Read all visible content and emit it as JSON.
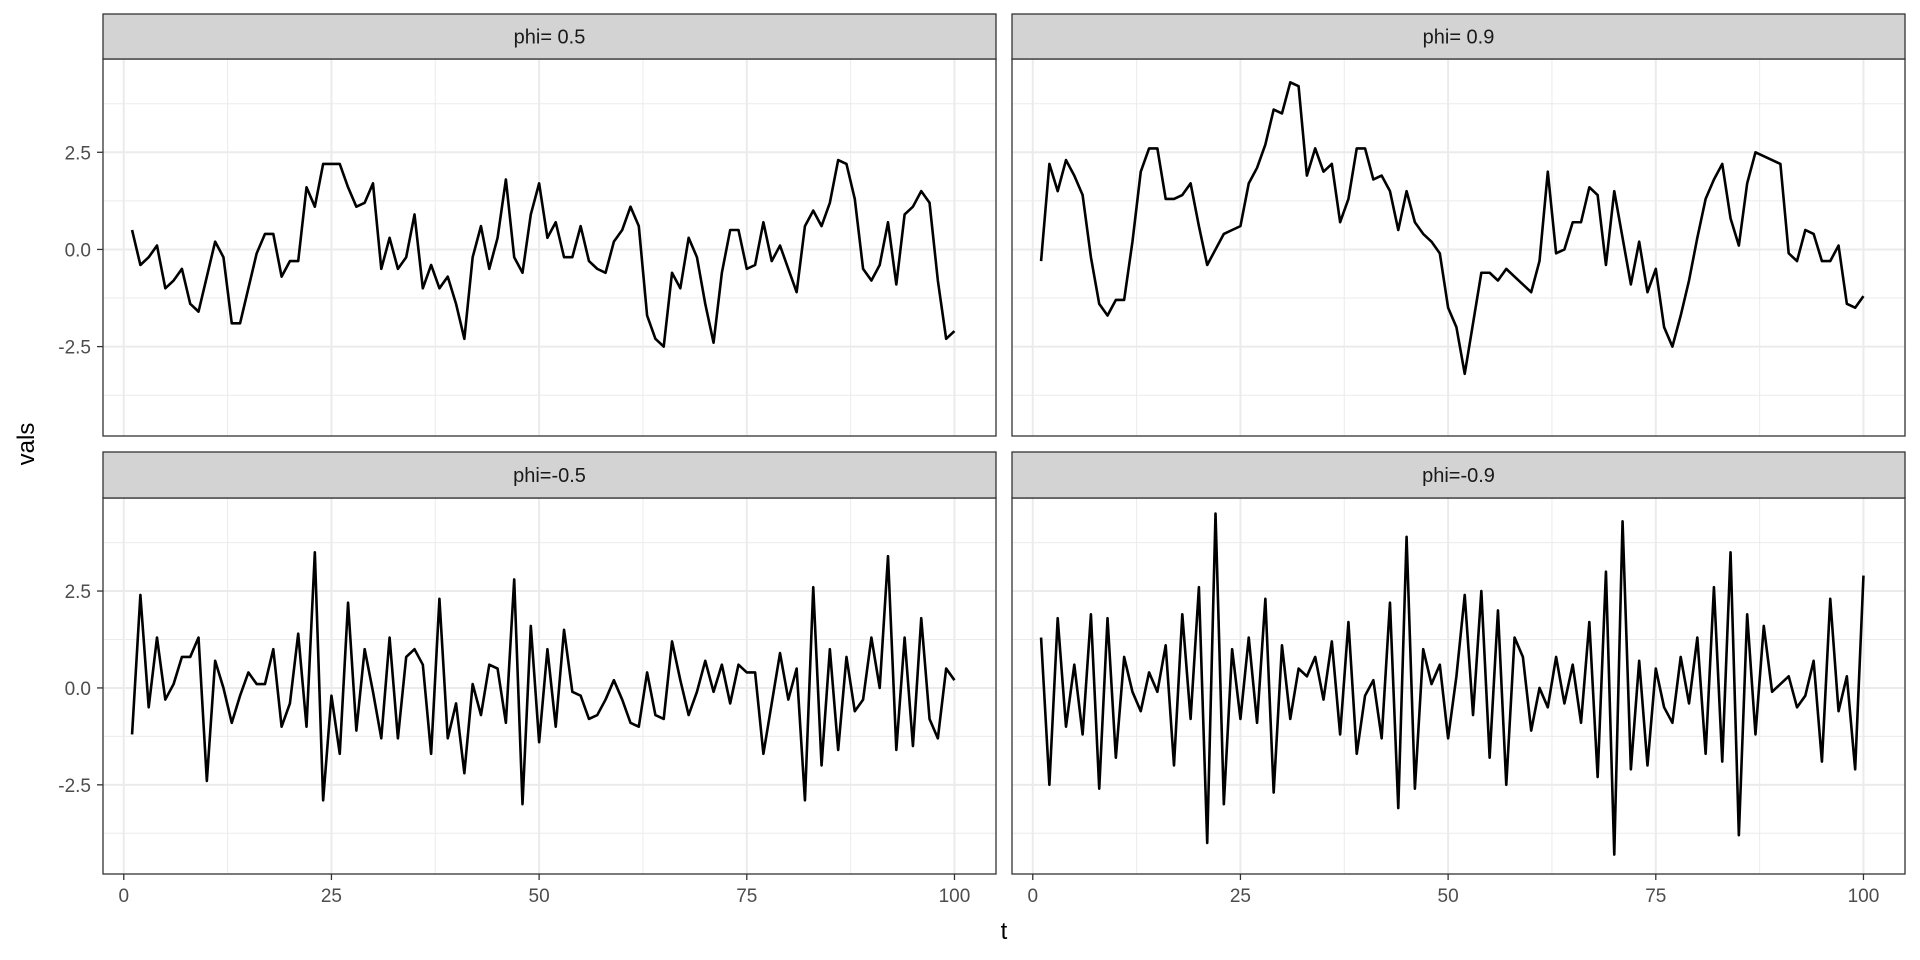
{
  "chart_data": {
    "type": "line",
    "facet_layout": "2x2",
    "xlabel": "t",
    "ylabel": "vals",
    "xlim": [
      -2.5,
      105
    ],
    "ylim": [
      -4.8,
      4.9
    ],
    "x_ticks": [
      0,
      25,
      50,
      75,
      100
    ],
    "x_tick_labels": [
      "0",
      "25",
      "50",
      "75",
      "100"
    ],
    "y_ticks": [
      -2.5,
      0,
      2.5
    ],
    "y_tick_labels": [
      "-2.5",
      "0.0",
      "2.5"
    ],
    "grid": true,
    "legend": "none",
    "line_color": "#000000",
    "strip_color": "#d3d3d3",
    "panels": [
      {
        "label": "phi= 0.5",
        "x_start": 1,
        "values": [
          0.5,
          -0.4,
          -0.2,
          0.1,
          -1.0,
          -0.8,
          -0.5,
          -1.4,
          -1.6,
          -0.7,
          0.2,
          -0.2,
          -1.9,
          -1.9,
          -1.0,
          -0.1,
          0.4,
          0.4,
          -0.7,
          -0.3,
          -0.3,
          1.6,
          1.1,
          2.2,
          2.2,
          2.2,
          1.6,
          1.1,
          1.2,
          1.7,
          -0.5,
          0.3,
          -0.5,
          -0.2,
          0.9,
          -1.0,
          -0.4,
          -1.0,
          -0.7,
          -1.4,
          -2.3,
          -0.2,
          0.6,
          -0.5,
          0.3,
          1.8,
          -0.2,
          -0.6,
          0.9,
          1.7,
          0.3,
          0.7,
          -0.2,
          -0.2,
          0.6,
          -0.3,
          -0.5,
          -0.6,
          0.2,
          0.5,
          1.1,
          0.6,
          -1.7,
          -2.3,
          -2.5,
          -0.6,
          -1.0,
          0.3,
          -0.2,
          -1.4,
          -2.4,
          -0.6,
          0.5,
          0.5,
          -0.5,
          -0.4,
          0.7,
          -0.3,
          0.1,
          -0.5,
          -1.1,
          0.6,
          1.0,
          0.6,
          1.2,
          2.3,
          2.2,
          1.3,
          -0.5,
          -0.8,
          -0.4,
          0.7,
          -0.9,
          0.9,
          1.1,
          1.5,
          1.2,
          -0.8,
          -2.3,
          -2.1
        ]
      },
      {
        "label": "phi= 0.9",
        "x_start": 1,
        "values": [
          -0.3,
          2.2,
          1.5,
          2.3,
          1.9,
          1.4,
          -0.2,
          -1.4,
          -1.7,
          -1.3,
          -1.3,
          0.2,
          2.0,
          2.6,
          2.6,
          1.3,
          1.3,
          1.4,
          1.7,
          0.6,
          -0.4,
          0.0,
          0.4,
          0.5,
          0.6,
          1.7,
          2.1,
          2.7,
          3.6,
          3.5,
          4.3,
          4.2,
          1.9,
          2.6,
          2.0,
          2.2,
          0.7,
          1.3,
          2.6,
          2.6,
          1.8,
          1.9,
          1.5,
          0.5,
          1.5,
          0.7,
          0.4,
          0.2,
          -0.1,
          -1.5,
          -2.0,
          -3.2,
          -1.9,
          -0.6,
          -0.6,
          -0.8,
          -0.5,
          -0.7,
          -0.9,
          -1.1,
          -0.3,
          2.0,
          -0.1,
          0.0,
          0.7,
          0.7,
          1.6,
          1.4,
          -0.4,
          1.5,
          0.3,
          -0.9,
          0.2,
          -1.1,
          -0.5,
          -2.0,
          -2.5,
          -1.7,
          -0.8,
          0.3,
          1.3,
          1.8,
          2.2,
          0.8,
          0.1,
          1.7,
          2.5,
          2.4,
          2.3,
          2.2,
          -0.1,
          -0.3,
          0.5,
          0.4,
          -0.3,
          -0.3,
          0.1,
          -1.4,
          -1.5,
          -1.2
        ]
      },
      {
        "label": "phi=-0.5",
        "x_start": 1,
        "values": [
          -1.2,
          2.4,
          -0.5,
          1.3,
          -0.3,
          0.1,
          0.8,
          0.8,
          1.3,
          -2.4,
          0.7,
          0.0,
          -0.9,
          -0.2,
          0.4,
          0.1,
          0.1,
          1.0,
          -1.0,
          -0.4,
          1.4,
          -1.0,
          3.5,
          -2.9,
          -0.2,
          -1.7,
          2.2,
          -1.1,
          1.0,
          -0.1,
          -1.3,
          1.3,
          -1.3,
          0.8,
          1.0,
          0.6,
          -1.7,
          2.3,
          -1.3,
          -0.4,
          -2.2,
          0.1,
          -0.7,
          0.6,
          0.5,
          -0.9,
          2.8,
          -3.0,
          1.6,
          -1.4,
          1.0,
          -1.0,
          1.5,
          -0.1,
          -0.2,
          -0.8,
          -0.7,
          -0.3,
          0.2,
          -0.3,
          -0.9,
          -1.0,
          0.4,
          -0.7,
          -0.8,
          1.2,
          0.2,
          -0.7,
          -0.1,
          0.7,
          -0.1,
          0.6,
          -0.4,
          0.6,
          0.4,
          0.4,
          -1.7,
          -0.4,
          0.9,
          -0.3,
          0.5,
          -2.9,
          2.6,
          -2.0,
          1.0,
          -1.6,
          0.8,
          -0.6,
          -0.3,
          1.3,
          0.0,
          3.4,
          -1.6,
          1.3,
          -1.5,
          1.8,
          -0.8,
          -1.3,
          0.5,
          0.2
        ]
      },
      {
        "label": "phi=-0.9",
        "x_start": 1,
        "values": [
          1.3,
          -2.5,
          1.8,
          -1.0,
          0.6,
          -1.2,
          1.9,
          -2.6,
          1.8,
          -1.8,
          0.8,
          -0.1,
          -0.6,
          0.4,
          -0.1,
          1.1,
          -2.0,
          1.9,
          -0.8,
          2.6,
          -4.0,
          4.5,
          -3.0,
          1.0,
          -0.8,
          1.3,
          -0.9,
          2.3,
          -2.7,
          1.1,
          -0.8,
          0.5,
          0.3,
          0.8,
          -0.3,
          1.2,
          -1.2,
          1.7,
          -1.7,
          -0.2,
          0.2,
          -1.3,
          2.2,
          -3.1,
          3.9,
          -2.6,
          1.0,
          0.1,
          0.6,
          -1.3,
          0.3,
          2.4,
          -0.7,
          2.5,
          -1.8,
          2.0,
          -2.5,
          1.3,
          0.8,
          -1.1,
          0.0,
          -0.5,
          0.8,
          -0.4,
          0.6,
          -0.9,
          1.7,
          -2.3,
          3.0,
          -4.3,
          4.3,
          -2.1,
          0.7,
          -2.0,
          0.5,
          -0.5,
          -0.9,
          0.8,
          -0.4,
          1.3,
          -1.7,
          2.6,
          -1.9,
          3.5,
          -3.8,
          1.9,
          -1.2,
          1.6,
          -0.1,
          0.1,
          0.3,
          -0.5,
          -0.2,
          0.7,
          -1.9,
          2.3,
          -0.6,
          0.3,
          -2.1,
          2.9
        ]
      }
    ]
  }
}
